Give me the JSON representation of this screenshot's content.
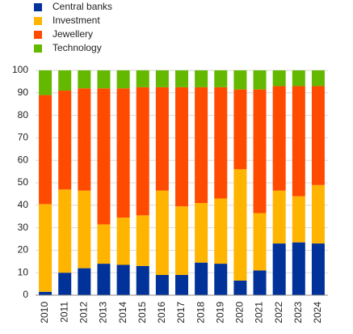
{
  "chart_data": {
    "type": "stacked_bar",
    "categories": [
      "2010",
      "2011",
      "2012",
      "2013",
      "2014",
      "2015",
      "2016",
      "2017",
      "2018",
      "2019",
      "2020",
      "2021",
      "2022",
      "2023",
      "2024"
    ],
    "series": [
      {
        "name": "Central banks",
        "color": "#003299",
        "values": [
          1.5,
          10,
          12,
          14,
          13.5,
          13,
          9,
          9,
          14.5,
          14,
          6.5,
          11,
          23,
          23.5,
          23
        ]
      },
      {
        "name": "Investment",
        "color": "#ffb400",
        "values": [
          39,
          37,
          34.5,
          17.5,
          21,
          22.5,
          37.5,
          30.5,
          26.5,
          29,
          49.5,
          25.5,
          23.5,
          20.5,
          26
        ]
      },
      {
        "name": "Jewellery",
        "color": "#ff4b00",
        "values": [
          48.5,
          44,
          45.5,
          60.5,
          57.5,
          57,
          46,
          53,
          51.5,
          49.5,
          35.5,
          55,
          46.5,
          49,
          44
        ]
      },
      {
        "name": "Technology",
        "color": "#65b800",
        "values": [
          11,
          9,
          8,
          8,
          8,
          7.5,
          7.5,
          7.5,
          7.5,
          7.5,
          8.5,
          8.5,
          7,
          7,
          7
        ]
      }
    ],
    "ylim": [
      0,
      100
    ],
    "yticks": [
      0,
      10,
      20,
      30,
      40,
      50,
      60,
      70,
      80,
      90,
      100
    ],
    "grid": true
  }
}
